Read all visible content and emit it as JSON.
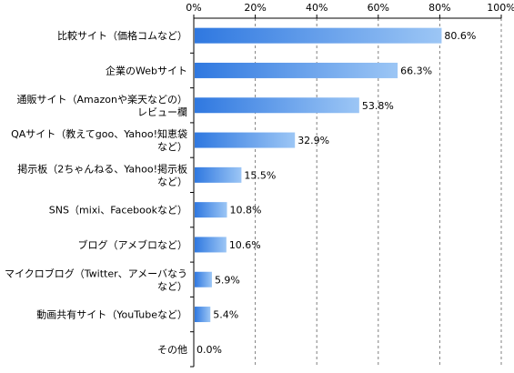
{
  "chart_data": {
    "type": "bar",
    "orientation": "horizontal",
    "categories": [
      "比較サイト（価格コムなど）",
      "企業のWebサイト",
      "通販サイト（Amazonや楽天などの）レビュー欄",
      "QAサイト（教えてgoo、Yahoo!知恵袋など）",
      "掲示板（2ちゃんねる、Yahoo!掲示板など）",
      "SNS（mixi、Facebookなど）",
      "ブログ（アメブロなど）",
      "マイクロブログ（Twitter、アメーバなう など）",
      "動画共有サイト（YouTubeなど）",
      "その他"
    ],
    "category_lines": [
      [
        "比較サイト（価格コムなど）"
      ],
      [
        "企業のWebサイト"
      ],
      [
        "通販サイト（Amazonや楽天などの）",
        "レビュー欄"
      ],
      [
        "QAサイト（教えてgoo、Yahoo!知恵袋",
        "など）"
      ],
      [
        "掲示板（2ちゃんねる、Yahoo!掲示板",
        "など）"
      ],
      [
        "SNS（mixi、Facebookなど）"
      ],
      [
        "ブログ（アメブロなど）"
      ],
      [
        "マイクロブログ（Twitter、アメーバなう",
        "など）"
      ],
      [
        "動画共有サイト（YouTubeなど）"
      ],
      [
        "その他"
      ]
    ],
    "values": [
      80.6,
      66.3,
      53.8,
      32.9,
      15.5,
      10.8,
      10.6,
      5.9,
      5.4,
      0.0
    ],
    "value_labels": [
      "80.6%",
      "66.3%",
      "53.8%",
      "32.9%",
      "15.5%",
      "10.8%",
      "10.6%",
      "5.9%",
      "5.4%",
      "0.0%"
    ],
    "xlim": [
      0,
      100
    ],
    "xticks": [
      0,
      20,
      40,
      60,
      80,
      100
    ],
    "xtick_labels": [
      "0%",
      "20%",
      "40%",
      "60%",
      "80%",
      "100%"
    ],
    "axis_position": "top",
    "grid": "vertical dashed",
    "colors": {
      "bar_start": "#2f78e0",
      "bar_end": "#9cc6f5",
      "grid": "#808080",
      "axis": "#000000",
      "text": "#000000"
    }
  }
}
